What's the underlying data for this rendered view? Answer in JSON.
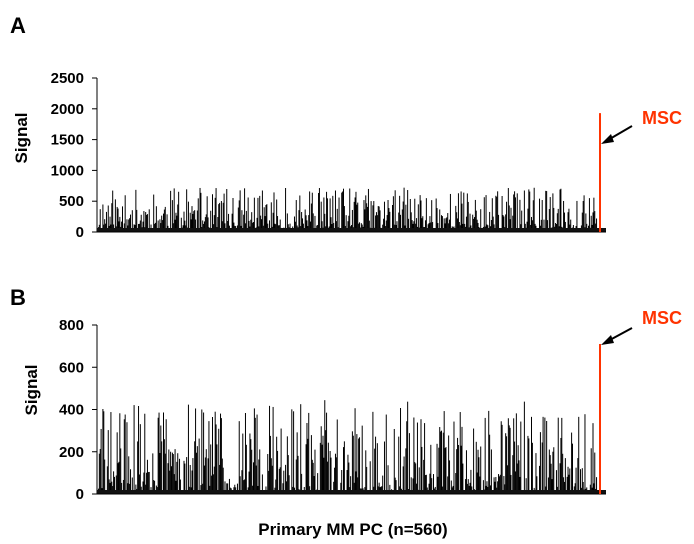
{
  "chart_data": [
    {
      "panel": "A",
      "type": "bar",
      "ylabel": "Signal",
      "ylim": [
        0,
        2500
      ],
      "yticks": [
        0,
        500,
        1000,
        1500,
        2000,
        2500
      ],
      "n_samples": 560,
      "sample_range": [
        50,
        720
      ],
      "highlight": {
        "label": "MSC",
        "value": 1930,
        "color": "#ff3300"
      },
      "grid": false,
      "legend": "none"
    },
    {
      "panel": "B",
      "type": "bar",
      "ylabel": "Signal",
      "ylim": [
        0,
        800
      ],
      "yticks": [
        0,
        200,
        400,
        600,
        800
      ],
      "n_samples": 560,
      "sample_range": [
        5,
        445
      ],
      "highlight": {
        "label": "MSC",
        "value": 710,
        "color": "#ff3300"
      },
      "grid": false,
      "legend": "none"
    }
  ],
  "shared_xlabel": "Primary MM PC (n=560)"
}
